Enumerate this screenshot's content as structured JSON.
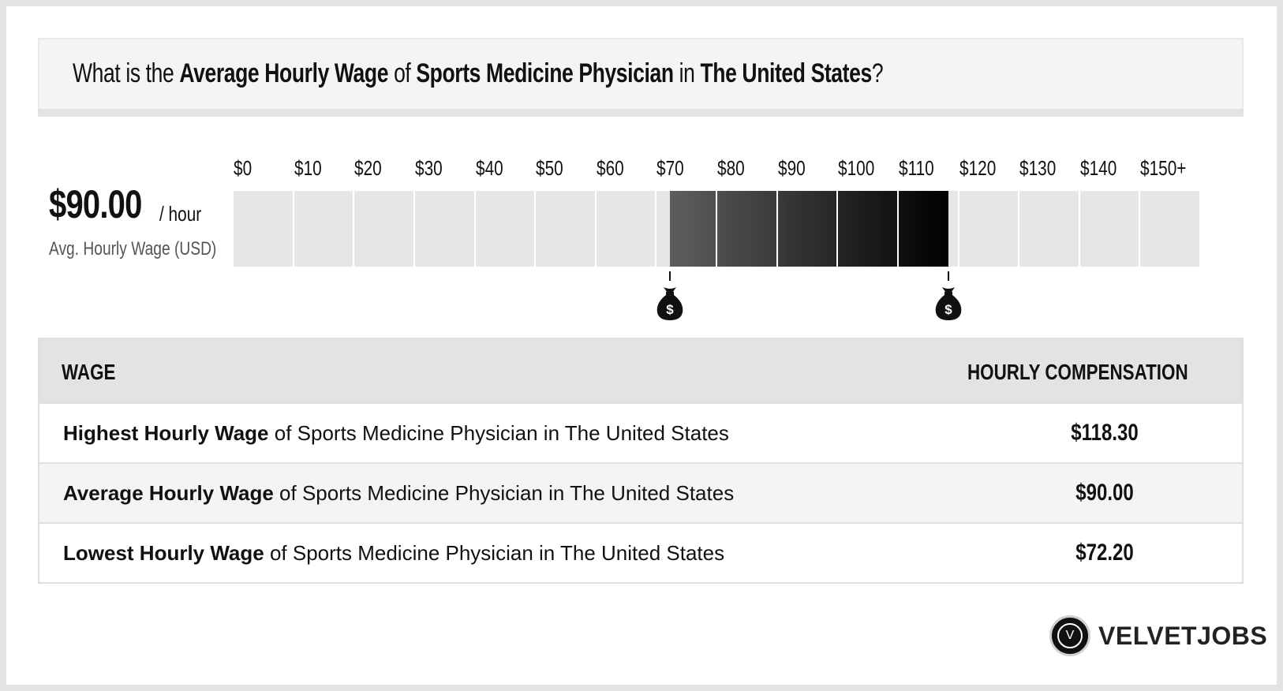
{
  "title": {
    "prefix": "What is the ",
    "metric": "Average Hourly Wage",
    "of": " of ",
    "job": "Sports Medicine Physician",
    "in": " in ",
    "location": "The United States",
    "suffix": "?"
  },
  "average": {
    "value": "$90.00",
    "unit": "/ hour",
    "caption": "Avg. Hourly Wage (USD)"
  },
  "table": {
    "header_wage": "WAGE",
    "header_comp": "HOURLY COMPENSATION",
    "rows": [
      {
        "label_bold": "Highest Hourly Wage",
        "label_rest": " of Sports Medicine Physician in The United States",
        "value": "$118.30"
      },
      {
        "label_bold": "Average Hourly Wage",
        "label_rest": " of Sports Medicine Physician in The United States",
        "value": "$90.00"
      },
      {
        "label_bold": "Lowest Hourly Wage",
        "label_rest": " of Sports Medicine Physician in The United States",
        "value": "$72.20"
      }
    ]
  },
  "brand": {
    "name": "VELVETJOBS",
    "logo_letter": "V"
  },
  "colors": {
    "track": "#e6e6e6",
    "range_light": "#5e5e5e",
    "range_dark": "#000000",
    "marker": "#111111"
  },
  "chart_data": {
    "type": "bar",
    "tick_labels": [
      "$0",
      "$10",
      "$20",
      "$30",
      "$40",
      "$50",
      "$60",
      "$70",
      "$80",
      "$90",
      "$100",
      "$110",
      "$120",
      "$130",
      "$140",
      "$150+"
    ],
    "xlim": [
      0,
      160
    ],
    "range_low": 72.2,
    "range_high": 118.3,
    "average": 90.0,
    "marker_icon": "money-bag-icon"
  }
}
